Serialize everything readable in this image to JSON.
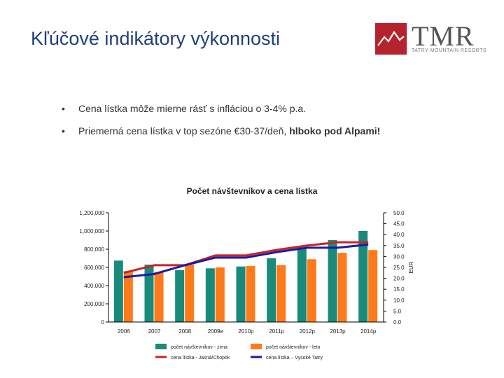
{
  "header": {
    "title": "Kľúčové indikátory výkonnosti",
    "logo_text": "TMR",
    "logo_sub": "TATRY MOUNTAIN RESORTS"
  },
  "bullets": [
    {
      "text": "Cena lístka môže mierne rásť s infláciou o 3-4% p.a.",
      "bold": ""
    },
    {
      "text": "Priemerná cena lístka v top sezóne €30-37/deň, ",
      "bold": "hlboko pod Alpami!"
    }
  ],
  "colors": {
    "title": "#1f3f7a",
    "teal": "#1a8a7a",
    "orange": "#ff7a1a",
    "red": "#cc2222",
    "blue": "#1a1aaa",
    "logo": "#b5242c"
  },
  "chart_data": {
    "type": "bar",
    "title": "Počet návštevníkov a cena lístka",
    "categories": [
      "2006",
      "2007",
      "2008",
      "2009e",
      "2010p",
      "2011p",
      "2012p",
      "2013p",
      "2014p"
    ],
    "yticks_left": [
      "0",
      "200,000",
      "400,000",
      "600,000",
      "800,000",
      "1,000,000",
      "1,200,000"
    ],
    "yticks_right": [
      "0.0",
      "5.0",
      "10.0",
      "15.0",
      "20.0",
      "25.0",
      "30.0",
      "35.0",
      "40.0",
      "45.0",
      "50.0"
    ],
    "y_right_label": "EUR",
    "ylim_left": [
      0,
      1200000
    ],
    "ylim_right": [
      0,
      50
    ],
    "series": [
      {
        "name": "počet návštevníkov - zima",
        "type": "bar",
        "axis": "left",
        "color": "#1a8a7a",
        "values": [
          675000,
          630000,
          570000,
          590000,
          610000,
          700000,
          820000,
          900000,
          1000000
        ]
      },
      {
        "name": "počet návštevníkov - leto",
        "type": "bar",
        "axis": "left",
        "color": "#ff7a1a",
        "values": [
          560000,
          550000,
          630000,
          600000,
          615000,
          625000,
          690000,
          760000,
          790000
        ]
      },
      {
        "name": "cena lístka - Jasná/Chopok",
        "type": "line",
        "axis": "right",
        "color": "#cc2222",
        "values": [
          22.5,
          26.0,
          26.0,
          30.5,
          30.5,
          33.0,
          35.0,
          36.5,
          36.5
        ]
      },
      {
        "name": "cena lístka – Vysoké Tatry",
        "type": "line",
        "axis": "right",
        "color": "#1a1aaa",
        "values": [
          20.5,
          22.0,
          26.0,
          29.5,
          29.5,
          32.0,
          34.0,
          34.0,
          35.5
        ]
      }
    ]
  }
}
